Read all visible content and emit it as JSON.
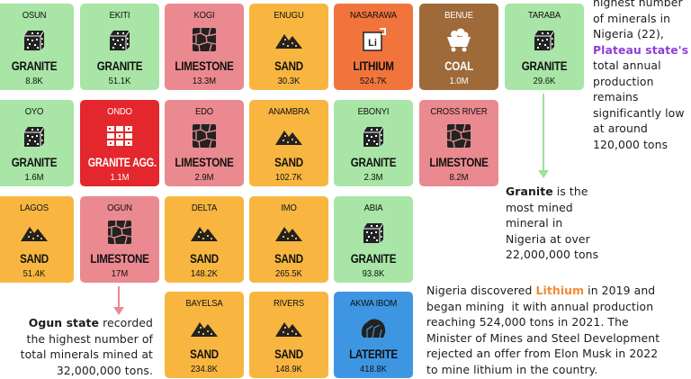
{
  "colors": {
    "granite": "#a8e5a6",
    "limestone": "#ea898f",
    "sand": "#f8b640",
    "lithium": "#f2743d",
    "coal": "#9e6a39",
    "granite_agg": "#e3272d",
    "laterite": "#3e96e2",
    "arrow_green": "#9be29a",
    "arrow_pink": "#e98a91"
  },
  "tiles": [
    {
      "state": "OSUN",
      "mineral": "GRANITE",
      "amount": "8.8K",
      "kind": "granite",
      "icon": "granite-icon"
    },
    {
      "state": "EKITI",
      "mineral": "GRANITE",
      "amount": "51.1K",
      "kind": "granite",
      "icon": "granite-icon"
    },
    {
      "state": "KOGI",
      "mineral": "LIMESTONE",
      "amount": "13.3M",
      "kind": "limestone",
      "icon": "limestone-icon"
    },
    {
      "state": "ENUGU",
      "mineral": "SAND",
      "amount": "30.3K",
      "kind": "sand",
      "icon": "sand-icon"
    },
    {
      "state": "NASARAWA",
      "mineral": "LITHIUM",
      "amount": "524.7K",
      "kind": "lithium",
      "icon": "lithium-icon"
    },
    {
      "state": "BENUE",
      "mineral": "COAL",
      "amount": "1.0M",
      "kind": "coal",
      "icon": "coal-icon"
    },
    {
      "state": "TARABA",
      "mineral": "GRANITE",
      "amount": "29.6K",
      "kind": "granite",
      "icon": "granite-icon"
    },
    {
      "state": "OYO",
      "mineral": "GRANITE",
      "amount": "1.6M",
      "kind": "granite",
      "icon": "granite-icon"
    },
    {
      "state": "ONDO",
      "mineral": "GRANITE AGG.",
      "amount": "1.1M",
      "kind": "granite_agg",
      "icon": "granite-aggregate-icon"
    },
    {
      "state": "EDO",
      "mineral": "LIMESTONE",
      "amount": "2.9M",
      "kind": "limestone",
      "icon": "limestone-icon"
    },
    {
      "state": "ANAMBRA",
      "mineral": "SAND",
      "amount": "102.7K",
      "kind": "sand",
      "icon": "sand-icon"
    },
    {
      "state": "EBONYI",
      "mineral": "GRANITE",
      "amount": "2.3M",
      "kind": "granite",
      "icon": "granite-icon"
    },
    {
      "state": "CROSS RIVER",
      "mineral": "LIMESTONE",
      "amount": "8.2M",
      "kind": "limestone",
      "icon": "limestone-icon"
    },
    {
      "state": "LAGOS",
      "mineral": "SAND",
      "amount": "51.4K",
      "kind": "sand",
      "icon": "sand-icon"
    },
    {
      "state": "OGUN",
      "mineral": "LIMESTONE",
      "amount": "17M",
      "kind": "limestone",
      "icon": "limestone-icon"
    },
    {
      "state": "DELTA",
      "mineral": "SAND",
      "amount": "148.2K",
      "kind": "sand",
      "icon": "sand-icon"
    },
    {
      "state": "IMO",
      "mineral": "SAND",
      "amount": "265.5K",
      "kind": "sand",
      "icon": "sand-icon"
    },
    {
      "state": "ABIA",
      "mineral": "GRANITE",
      "amount": "93.8K",
      "kind": "granite",
      "icon": "granite-icon"
    },
    {
      "state": "BAYELSA",
      "mineral": "SAND",
      "amount": "234.8K",
      "kind": "sand",
      "icon": "sand-icon"
    },
    {
      "state": "RIVERS",
      "mineral": "SAND",
      "amount": "148.9K",
      "kind": "sand",
      "icon": "sand-icon"
    },
    {
      "state": "AKWA IBOM",
      "mineral": "LATERITE",
      "amount": "418.8K",
      "kind": "laterite",
      "icon": "laterite-icon"
    }
  ],
  "notes": {
    "top_right": {
      "line1": "highest number",
      "line2": "of minerals in",
      "line3": "Nigeria (22),",
      "highlight": "Plateau state's",
      "line5": "total annual",
      "line6": "production",
      "line7": "remains",
      "line8": "significantly low",
      "line9": "at around",
      "line10": "120,000 tons"
    },
    "granite": {
      "bold": "Granite",
      "line1_rest": " is the",
      "line2": "most mined",
      "line3": "mineral in",
      "line4": "Nigeria at over",
      "line5": "22,000,000 tons"
    },
    "lithium": {
      "line1_pre": "Nigeria discovered ",
      "highlight": "Lithium",
      "line1_post": " in 2019 and",
      "line2": "began mining  it with annual production",
      "line3": "reaching 524,000 tons in 2021. The",
      "line4": "Minister of Mines and Steel Development",
      "line5": "rejected an offer from Elon Musk in 2022",
      "line6": "to mine lithium in the country."
    },
    "ogun": {
      "bold": "Ogun state",
      "line1_rest": " recorded",
      "line2": "the highest number of",
      "line3": "total minerals mined at",
      "line4": "32,000,000 tons."
    }
  }
}
